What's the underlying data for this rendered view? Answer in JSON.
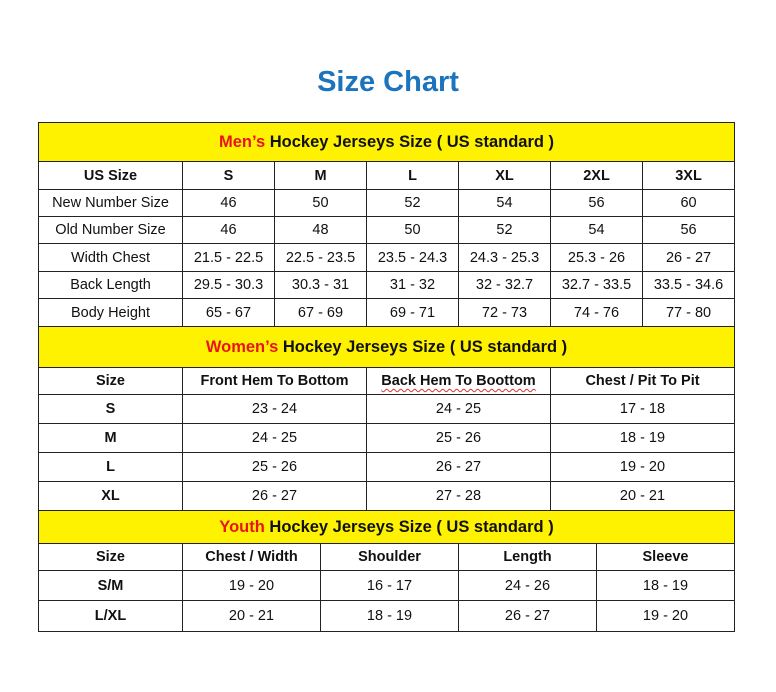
{
  "title": "Size Chart",
  "colors": {
    "title": "#1c73be",
    "section_bg": "#fff200",
    "highlight": "#e8141a"
  },
  "men": {
    "heading_highlight": "Men’s",
    "heading_rest": " Hockey Jerseys Size ( US standard )",
    "header": [
      "US Size",
      "S",
      "M",
      "L",
      "XL",
      "2XL",
      "3XL"
    ],
    "rows": [
      [
        "New Number Size",
        "46",
        "50",
        "52",
        "54",
        "56",
        "60"
      ],
      [
        "Old Number Size",
        "46",
        "48",
        "50",
        "52",
        "54",
        "56"
      ],
      [
        "Width Chest",
        "21.5 - 22.5",
        "22.5 - 23.5",
        "23.5 - 24.3",
        "24.3 - 25.3",
        "25.3 - 26",
        "26 - 27"
      ],
      [
        "Back Length",
        "29.5 - 30.3",
        "30.3 - 31",
        "31 - 32",
        "32 - 32.7",
        "32.7 - 33.5",
        "33.5 - 34.6"
      ],
      [
        "Body Height",
        "65 - 67",
        "67 - 69",
        "69 - 71",
        "72 - 73",
        "74 - 76",
        "77 - 80"
      ]
    ]
  },
  "women": {
    "heading_highlight": "Women’s",
    "heading_rest": " Hockey Jerseys Size ( US standard )",
    "header": [
      "Size",
      "Front Hem To Bottom",
      "Back Hem To Boottom",
      "Chest / Pit To Pit"
    ],
    "rows": [
      [
        "S",
        "23 - 24",
        "24 - 25",
        "17 - 18"
      ],
      [
        "M",
        "24 - 25",
        "25 - 26",
        "18 - 19"
      ],
      [
        "L",
        "25 - 26",
        "26 - 27",
        "19 - 20"
      ],
      [
        "XL",
        "26 - 27",
        "27 - 28",
        "20 - 21"
      ]
    ]
  },
  "youth": {
    "heading_highlight": "Youth",
    "heading_rest": " Hockey Jerseys Size ( US standard )",
    "header": [
      "Size",
      "Chest / Width",
      "Shoulder",
      "Length",
      "Sleeve"
    ],
    "rows": [
      [
        "S/M",
        "19 - 20",
        "16 - 17",
        "24 - 26",
        "18 - 19"
      ],
      [
        "L/XL",
        "20 - 21",
        "18 - 19",
        "26 - 27",
        "19 - 20"
      ]
    ]
  }
}
